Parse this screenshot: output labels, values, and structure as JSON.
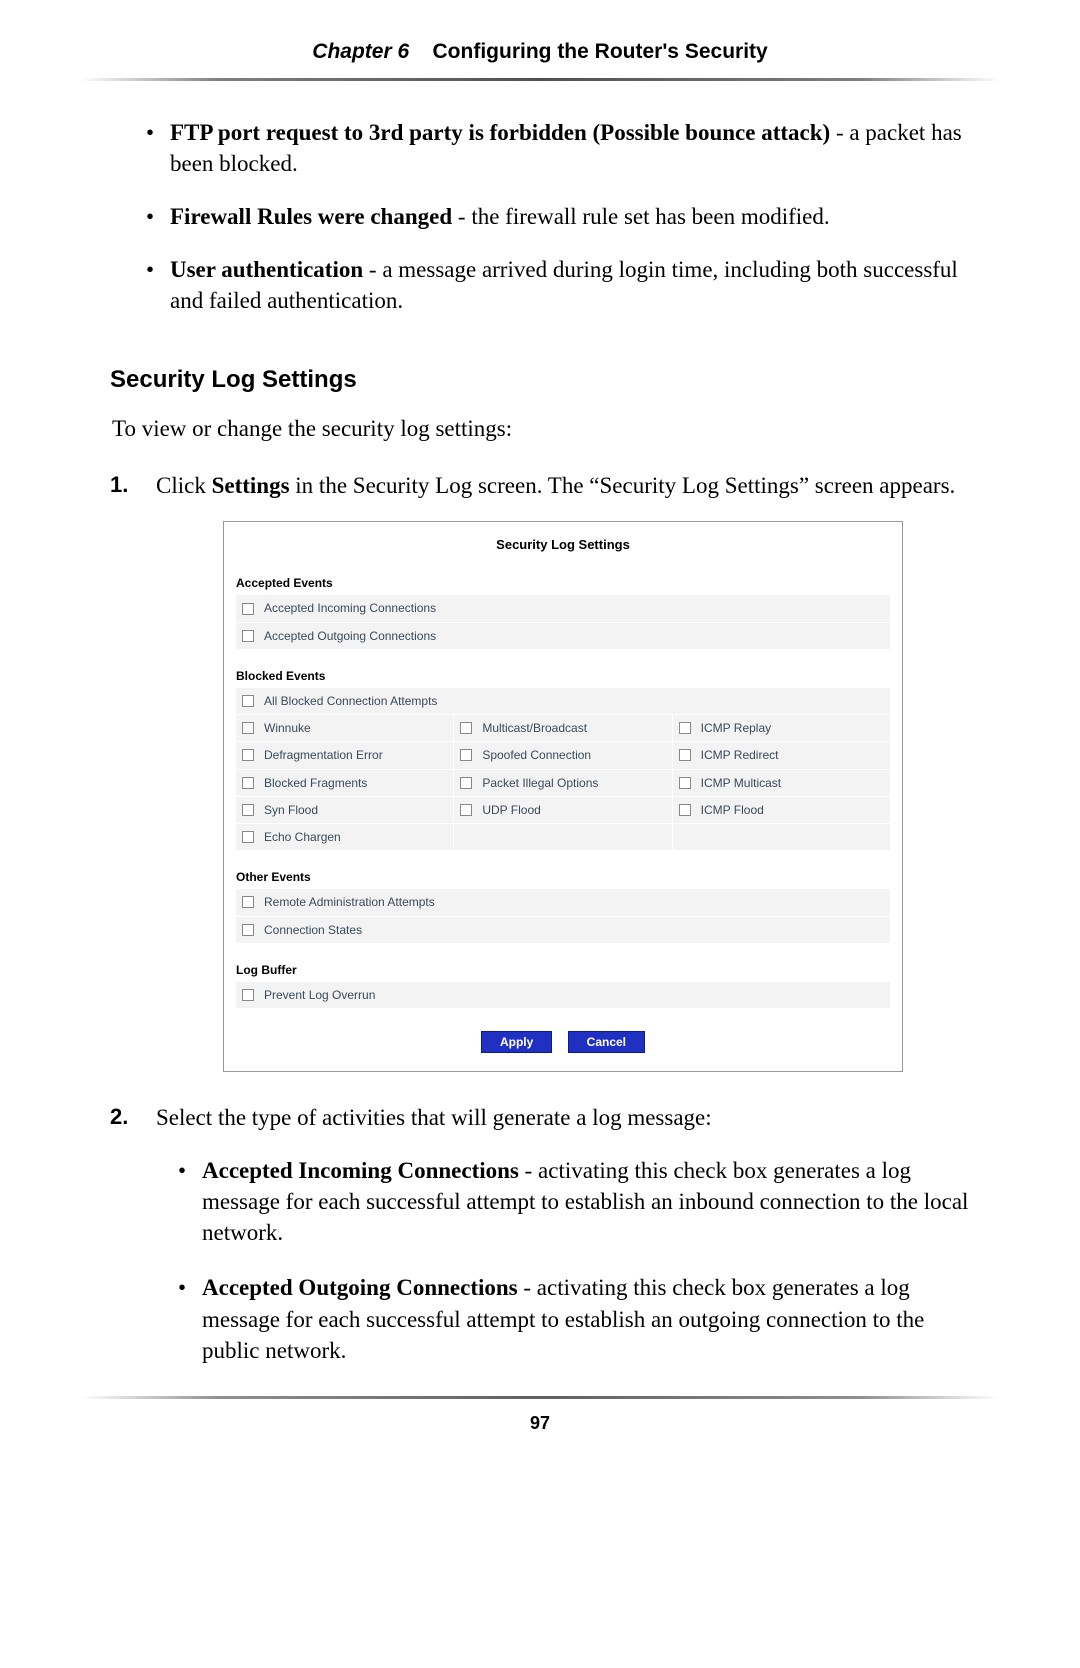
{
  "header": {
    "chapter_label": "Chapter 6",
    "chapter_title": "Configuring the Router's Security"
  },
  "bullets_top": [
    {
      "bold": "FTP port request to 3rd party is forbidden (Possible bounce attack)",
      "rest": " - a packet has been blocked."
    },
    {
      "bold": "Firewall Rules were changed",
      "rest": " - the firewall rule set has been modified."
    },
    {
      "bold": "User authentication",
      "rest": " - a message arrived during login time, including both successful and failed authentication."
    }
  ],
  "section_heading": "Security Log Settings",
  "intro": "To view or change the security log settings:",
  "step1": {
    "num": "1.",
    "text_pre": "Click ",
    "text_bold": "Settings",
    "text_post": " in the Security Log screen. The “Security Log Settings” screen appears."
  },
  "screenshot": {
    "title": "Security Log Settings",
    "accepted_label": "Accepted Events",
    "accepted_rows": [
      "Accepted Incoming Connections",
      "Accepted Outgoing Connections"
    ],
    "blocked_label": "Blocked Events",
    "blocked_full": "All Blocked Connection Attempts",
    "blocked_grid": [
      [
        "Winnuke",
        "Multicast/Broadcast",
        "ICMP Replay"
      ],
      [
        "Defragmentation Error",
        "Spoofed Connection",
        "ICMP Redirect"
      ],
      [
        "Blocked Fragments",
        "Packet Illegal Options",
        "ICMP Multicast"
      ],
      [
        "Syn Flood",
        "UDP Flood",
        "ICMP Flood"
      ],
      [
        "Echo Chargen",
        "",
        ""
      ]
    ],
    "other_label": "Other Events",
    "other_rows": [
      "Remote Administration Attempts",
      "Connection States"
    ],
    "buffer_label": "Log Buffer",
    "buffer_rows": [
      "Prevent Log Overrun"
    ],
    "apply_label": "Apply",
    "cancel_label": "Cancel"
  },
  "step2": {
    "num": "2.",
    "text": "Select the type of activities that will generate a log message:",
    "sub": [
      {
        "bold": "Accepted Incoming Connections",
        "rest": " - activating this check box generates a log message for each successful attempt to establish an inbound connection to the local network."
      },
      {
        "bold": "Accepted Outgoing Connections",
        "rest": " - activating this check box generates a log message for each successful attempt to establish an outgoing connection to the public network."
      }
    ]
  },
  "page_number": "97"
}
